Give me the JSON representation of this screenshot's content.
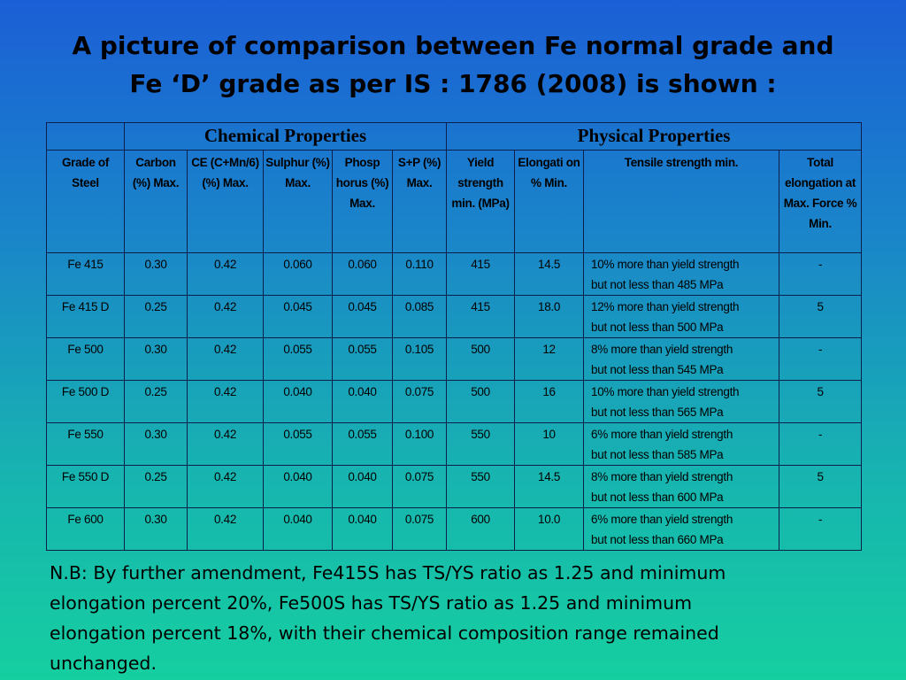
{
  "title": {
    "line1": "A picture of comparison between Fe normal grade and",
    "line2": "Fe ‘D’ grade as per IS : 1786 (2008) is shown :"
  },
  "table": {
    "group_headers": {
      "chemical": "Chemical Properties",
      "physical": "Physical Properties"
    },
    "columns": [
      "Grade of Steel",
      "Carbon (%) Max.",
      "CE (C+Mn/6) (%) Max.",
      "Sulphur (%) Max.",
      "Phosp horus (%) Max.",
      "S+P (%) Max.",
      "Yield strength min. (MPa)",
      "Elongati on % Min.",
      "Tensile strength min.",
      "Total elongation at Max. Force % Min."
    ],
    "rows": [
      {
        "grade": "Fe 415",
        "carbon": "0.30",
        "ce": "0.42",
        "sulphur": "0.060",
        "phosphorus": "0.060",
        "sp": "0.110",
        "yield": "415",
        "elongation": "14.5",
        "tensile_1": "10%  more  than  yield  strength",
        "tensile_2": "but not less than 485 MPa",
        "total": "-"
      },
      {
        "grade": "Fe 415 D",
        "carbon": "0.25",
        "ce": "0.42",
        "sulphur": "0.045",
        "phosphorus": "0.045",
        "sp": "0.085",
        "yield": "415",
        "elongation": "18.0",
        "tensile_1": "12%  more  than  yield  strength",
        "tensile_2": "but not less than 500 MPa",
        "total": "5"
      },
      {
        "grade": "Fe 500",
        "carbon": "0.30",
        "ce": "0.42",
        "sulphur": "0.055",
        "phosphorus": "0.055",
        "sp": "0.105",
        "yield": "500",
        "elongation": "12",
        "tensile_1": "8%  more  than  yield  strength",
        "tensile_2": "but not less than 545 MPa",
        "total": "-"
      },
      {
        "grade": "Fe 500 D",
        "carbon": "0.25",
        "ce": "0.42",
        "sulphur": "0.040",
        "phosphorus": "0.040",
        "sp": "0.075",
        "yield": "500",
        "elongation": "16",
        "tensile_1": "10%  more  than  yield  strength",
        "tensile_2": "but not less than 565 MPa",
        "total": "5"
      },
      {
        "grade": "Fe 550",
        "carbon": "0.30",
        "ce": "0.42",
        "sulphur": "0.055",
        "phosphorus": "0.055",
        "sp": "0.100",
        "yield": "550",
        "elongation": "10",
        "tensile_1": "6%  more  than  yield  strength",
        "tensile_2": "but not less than 585 MPa",
        "total": "-"
      },
      {
        "grade": "Fe 550 D",
        "carbon": "0.25",
        "ce": "0.42",
        "sulphur": "0.040",
        "phosphorus": "0.040",
        "sp": "0.075",
        "yield": "550",
        "elongation": "14.5",
        "tensile_1": "8%  more  than  yield  strength",
        "tensile_2": "but not less than 600 MPa",
        "total": "5"
      },
      {
        "grade": "Fe 600",
        "carbon": "0.30",
        "ce": "0.42",
        "sulphur": "0.040",
        "phosphorus": "0.040",
        "sp": "0.075",
        "yield": "600",
        "elongation": "10.0",
        "tensile_1": "6%  more  than  yield  strength",
        "tensile_2": "but not less than 660 MPa",
        "total": "-"
      }
    ]
  },
  "note": {
    "line1": "N.B: By further amendment, Fe415S has TS/YS ratio as 1.25 and minimum",
    "line2": "elongation percent 20%, Fe500S has TS/YS ratio as 1.25 and minimum",
    "line3": "elongation percent 18%, with their chemical composition range remained",
    "line4": "unchanged."
  },
  "colors": {
    "gradient_top": "#1b5fd6",
    "gradient_bottom": "#15cfa0",
    "border": "#0d1f4a"
  }
}
